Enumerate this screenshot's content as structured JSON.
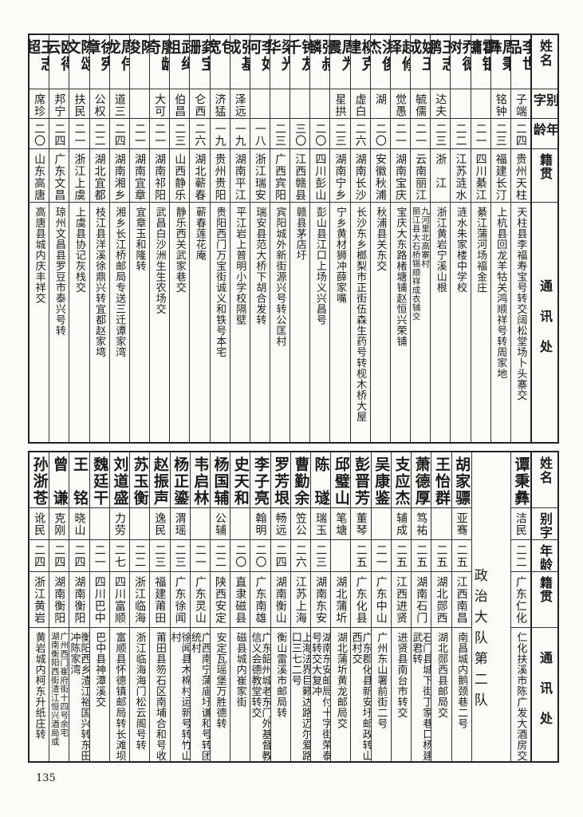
{
  "headers": {
    "name": "姓名",
    "alias": "别字",
    "age": "年龄",
    "native": "籍贯",
    "address": "通讯处"
  },
  "top_table": {
    "rows": [
      {
        "name": "李世品",
        "alias": "子端",
        "age": "二四",
        "native": "贵州天柱",
        "address": "天柱县李福寿宝号转交阔松堂场卜头寨交"
      },
      {
        "name": "周秉彝",
        "alias": "铭钟",
        "age": "二三",
        "native": "福建长汀",
        "address": "上杭县回龙羊牯关鸿顺祥号转周家地"
      },
      {
        "name": "霍锟镛",
        "alias": "",
        "age": "二一",
        "native": "四川綦江",
        "address": "綦江蒲河场福金庄"
      },
      {
        "name": "乔德树",
        "alias": "",
        "age": "二二",
        "native": "江苏涟水",
        "address": "涟水朱家楼中学校"
      },
      {
        "name": "王志鹏",
        "alias": "达夫",
        "age": "二三",
        "native": "浙　江",
        "address": "浙江黄岩宁溪山根"
      },
      {
        "name": "姚玉成",
        "alias": "毓儒",
        "age": "二一",
        "native": "云南丽江",
        "address": [
          "丽江县大石桥锡顺祥成衣铺交",
          "九河里北高寨村"
        ]
      },
      {
        "name": "赵修铎",
        "alias": "觉愚",
        "age": "二一",
        "native": "湖南宝庆",
        "address": "宝庆大东路楮塘铺赵恒兴荣铺"
      },
      {
        "name": "洪俊杰",
        "alias": "湖",
        "age": "二〇",
        "native": "安徽秋浦",
        "address": "秋浦县关东交"
      },
      {
        "name": "柳克建",
        "alias": "虚白",
        "age": "二六",
        "native": "湖南长沙",
        "address": "长沙东乡榔梨市正街伍森生药号转枧木桥大屋"
      },
      {
        "name": "周为震",
        "alias": "星拱",
        "age": "二三",
        "native": "湖南宁乡",
        "address": "宁乡黄材狮冲薛家嘴"
      },
      {
        "name": "张叔麟",
        "alias": "",
        "age": "二〇",
        "native": "四川彭山",
        "address": "彭山县江口上场义兴昌号"
      },
      {
        "name": "钟友千",
        "alias": "",
        "age": "三〇",
        "native": "江西赣县",
        "address": "赣县茅店圩"
      },
      {
        "name": "梁光华",
        "alias": "",
        "age": "二三",
        "native": "广西宾阳",
        "address": "宾阳城外新街源兴号转公匡村"
      },
      {
        "name": "李如河",
        "alias": "",
        "age": "一八",
        "native": "浙江瑞安",
        "address": "瑞安县范大桥下胡合发转"
      },
      {
        "name": "张基成",
        "alias": "泽远",
        "age": "一九",
        "native": "湖南平江",
        "address": "平江岩上普明小学校隔壁"
      },
      {
        "name": "包　宽",
        "alias": "济猛",
        "age": "一九",
        "native": "贵州贵阳",
        "address": "贵阳西门万宝街诚义和铁号本宅"
      },
      {
        "name": "龚宝珊",
        "alias": "仑西",
        "age": "二六",
        "native": "湖北蕲春",
        "address": "蕲春莲花庵"
      },
      {
        "name": "武绳祖",
        "alias": "伯昌",
        "age": "二三",
        "native": "山西静乐",
        "address": "静乐西关武家巷交"
      },
      {
        "name": "廖龄奇",
        "alias": "大可",
        "age": "二一",
        "native": "湖南祁阳",
        "address": "武昌白沙洲生生农场交"
      },
      {
        "name": "陈　俊",
        "alias": "",
        "age": "二一",
        "native": "湖南宜章",
        "address": "宜章玉和隆转"
      },
      {
        "name": "周伟龙",
        "alias": "道三",
        "age": "二四",
        "native": "湖南湘乡",
        "address": "湘乡长江桥邮局专送三迁谭家湾"
      },
      {
        "name": "徐宪章",
        "alias": "公权",
        "age": "二二",
        "native": "湖北宜都",
        "address": "枝江县洋溪徐鼎兴转宜都赵家塆"
      },
      {
        "name": "陈颂文",
        "alias": "扶民",
        "age": "二一",
        "native": "浙江上虞",
        "address": "上虞县协记灰栈交"
      },
      {
        "name": "欧得云",
        "alias": "邦宁",
        "age": "二四",
        "native": "广东文昌",
        "address": "琼州文昌县罗豆市泰兴号转"
      },
      {
        "name": "王志超",
        "alias": "席珍",
        "age": "二〇",
        "native": "山东高唐",
        "address": "高唐县城内庆丰祥交"
      }
    ]
  },
  "bottom_table": {
    "first_rows": [
      {
        "name": "谭秉彝",
        "alias": "洁民",
        "age": "二二",
        "native": "广东仁化",
        "address": "仁化扶溪市陈广发大酒房交"
      }
    ],
    "section_label": "政治大队第二队",
    "rows": [
      {
        "name": "胡家骠",
        "alias": "亚骞",
        "age": "二五",
        "native": "江西南昌",
        "address": "南昌城内鹅颈巷二号"
      },
      {
        "name": "王怡群",
        "alias": "",
        "age": "二五",
        "native": "湖北郧西",
        "address": "湖北郧西县邮局交"
      },
      {
        "name": "萧德厚",
        "alias": "笃祐",
        "age": "二五",
        "native": "湖南石门",
        "address": "石门县城下街丁家巷口杨建武君转"
      },
      {
        "name": "支应杰",
        "alias": "辅成",
        "age": "二五",
        "native": "江西进贤",
        "address": "进贤县南台市转交"
      },
      {
        "name": "吴康鉴",
        "alias": "",
        "age": "二一",
        "native": "广东中山",
        "address": "广州东山署前街二号"
      },
      {
        "name": "彭晋芳",
        "alias": "董琴",
        "age": "二五",
        "native": "广东化县",
        "address": "广东郡化县新安圩邮政转山西村交"
      },
      {
        "name": "邱璧山",
        "alias": "笔塘",
        "age": "",
        "native": "湖北蒲圻",
        "address": "湖北蒲圻黄龙邮局交"
      },
      {
        "name": "陈　璲",
        "alias": "瑞玉",
        "age": "二三",
        "native": "湖南东安",
        "address": "湖南东安邮局付十字街荣泰号转交大复冲"
      },
      {
        "name": "曹勤余",
        "alias": "笠公",
        "age": "二六",
        "native": "江苏上海",
        "address": "上海法界巨籁达路迈尔爱路口三七二号"
      },
      {
        "name": "罗芳垠",
        "alias": "畅远",
        "age": "二四",
        "native": "湖南衡山",
        "address": "衡山雷溪市邮局转"
      },
      {
        "name": "李子亮",
        "alias": "翰明",
        "age": "二〇",
        "native": "广东南雄",
        "address": "广东韶州城老东门外基督教信义会德教堂转交"
      },
      {
        "name": "史天和",
        "alias": "",
        "age": "二〇",
        "native": "直隶磁县",
        "address": "磁县城内崔家街"
      },
      {
        "name": "杨国辅",
        "alias": "公辅",
        "age": "二二",
        "native": "陕西安定",
        "address": "安定瓦瑶堡万胜德转"
      },
      {
        "name": "韦启林",
        "alias": "",
        "age": "二一",
        "native": "广东灵山",
        "address": "广西南宁蒲庙圩谦和号转团统村"
      },
      {
        "name": "杨正鎏",
        "alias": "渭瑶",
        "age": "二三",
        "native": "广东徐闻",
        "address": "徐闻县木棉村运新号转竹山村"
      },
      {
        "name": "赵振声",
        "alias": "逸民",
        "age": "二三",
        "native": "福建莆田",
        "address": "莆田县笏石区南埔合和号收"
      },
      {
        "name": "苏玉衡",
        "alias": "",
        "age": "二二",
        "native": "浙江临海",
        "address": "浙江临海海门松云阁号转"
      },
      {
        "name": "刘道盛",
        "alias": "力劳",
        "age": "二七",
        "native": "四川富顺",
        "address": "富顺县怀德镇邮局转长滩坝"
      },
      {
        "name": "魏廷干",
        "alias": "",
        "age": "二一",
        "native": "四川巴中",
        "address": "巴中县神潭溪交"
      },
      {
        "name": "王　铭",
        "alias": "晓山",
        "age": "二四",
        "native": "湖南衡阳",
        "address": "衡阳西乡渣江裕国兴转东田冲陈家湾"
      },
      {
        "name": "曾　谦",
        "alias": "克刚",
        "age": "二四",
        "native": "湖南衡阳",
        "address": [
          "湖南衡阳西街渣江恒兴酒局或",
          "广州西门崔府街十四号余宅"
        ]
      },
      {
        "name": "孙浙苍",
        "alias": "讹民",
        "age": "二四",
        "native": "浙江黄岩",
        "address": "黄岩城内柯东升纸庄转"
      }
    ]
  },
  "page_number": "135"
}
